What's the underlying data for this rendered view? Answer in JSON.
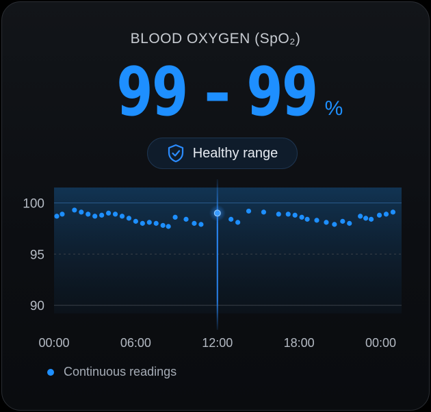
{
  "header": {
    "title": "BLOOD OXYGEN (SpO₂)",
    "value_display": "99 – 99",
    "unit": "%"
  },
  "status": {
    "label": "Healthy range",
    "icon": "shield-check-icon"
  },
  "colors": {
    "accent": "#1e8fff",
    "background": "#0c0e12",
    "text_muted": "#a5acb6"
  },
  "chart_data": {
    "type": "scatter",
    "ylim": [
      88,
      101.5
    ],
    "xlim": [
      0,
      24
    ],
    "y_ticks": [
      "100",
      "95",
      "90"
    ],
    "y_tick_values": [
      100,
      95,
      90
    ],
    "x_ticks": [
      "00:00",
      "06:00",
      "12:00",
      "18:00",
      "00:00"
    ],
    "x_tick_values": [
      0,
      6,
      12,
      18,
      24
    ],
    "selected_x": 12,
    "series": [
      {
        "name": "Continuous readings",
        "points": [
          {
            "x": 0.2,
            "y": 98.7
          },
          {
            "x": 0.6,
            "y": 98.9
          },
          {
            "x": 1.5,
            "y": 99.3
          },
          {
            "x": 2.0,
            "y": 99.1
          },
          {
            "x": 2.5,
            "y": 98.9
          },
          {
            "x": 3.0,
            "y": 98.7
          },
          {
            "x": 3.5,
            "y": 98.8
          },
          {
            "x": 4.0,
            "y": 99.0
          },
          {
            "x": 4.5,
            "y": 98.9
          },
          {
            "x": 5.0,
            "y": 98.7
          },
          {
            "x": 5.5,
            "y": 98.5
          },
          {
            "x": 6.0,
            "y": 98.2
          },
          {
            "x": 6.5,
            "y": 98.0
          },
          {
            "x": 7.0,
            "y": 98.1
          },
          {
            "x": 7.5,
            "y": 98.0
          },
          {
            "x": 8.0,
            "y": 97.8
          },
          {
            "x": 8.4,
            "y": 97.7
          },
          {
            "x": 8.9,
            "y": 98.6
          },
          {
            "x": 9.7,
            "y": 98.4
          },
          {
            "x": 10.3,
            "y": 98.0
          },
          {
            "x": 10.8,
            "y": 97.9
          },
          {
            "x": 12.0,
            "y": 99.0
          },
          {
            "x": 13.0,
            "y": 98.4
          },
          {
            "x": 13.5,
            "y": 98.1
          },
          {
            "x": 14.3,
            "y": 99.2
          },
          {
            "x": 15.4,
            "y": 99.1
          },
          {
            "x": 16.5,
            "y": 98.9
          },
          {
            "x": 17.2,
            "y": 98.9
          },
          {
            "x": 17.7,
            "y": 98.8
          },
          {
            "x": 18.2,
            "y": 98.6
          },
          {
            "x": 18.6,
            "y": 98.4
          },
          {
            "x": 19.3,
            "y": 98.3
          },
          {
            "x": 20.0,
            "y": 98.1
          },
          {
            "x": 20.6,
            "y": 97.9
          },
          {
            "x": 21.2,
            "y": 98.2
          },
          {
            "x": 21.7,
            "y": 98.0
          },
          {
            "x": 22.5,
            "y": 98.7
          },
          {
            "x": 22.9,
            "y": 98.5
          },
          {
            "x": 23.3,
            "y": 98.4
          },
          {
            "x": 23.9,
            "y": 98.8
          },
          {
            "x": 24.4,
            "y": 98.9
          },
          {
            "x": 24.9,
            "y": 99.1
          }
        ]
      }
    ]
  },
  "legend": {
    "label": "Continuous readings"
  }
}
